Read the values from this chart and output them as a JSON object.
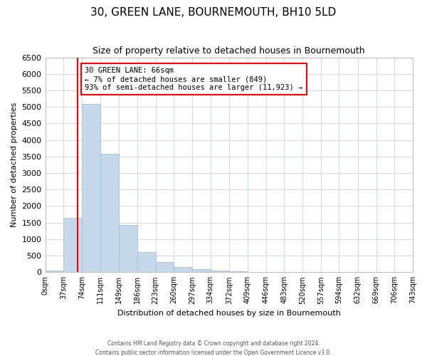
{
  "title": "30, GREEN LANE, BOURNEMOUTH, BH10 5LD",
  "subtitle": "Size of property relative to detached houses in Bournemouth",
  "xlabel": "Distribution of detached houses by size in Bournemouth",
  "ylabel": "Number of detached properties",
  "bin_edges": [
    0,
    37,
    74,
    111,
    149,
    186,
    223,
    260,
    297,
    334,
    372,
    409,
    446,
    483,
    520,
    557,
    594,
    632,
    669,
    706,
    743
  ],
  "bin_counts": [
    60,
    1640,
    5080,
    3580,
    1420,
    620,
    310,
    150,
    100,
    50,
    30,
    0,
    0,
    0,
    0,
    0,
    0,
    0,
    0,
    0
  ],
  "bar_color": "#c5d9ea",
  "bar_edgecolor": "#a0c0d8",
  "property_line_x": 66,
  "annotation_text_line1": "30 GREEN LANE: 66sqm",
  "annotation_text_line2": "← 7% of detached houses are smaller (849)",
  "annotation_text_line3": "93% of semi-detached houses are larger (11,923) →",
  "ylim": [
    0,
    6500
  ],
  "yticks": [
    0,
    500,
    1000,
    1500,
    2000,
    2500,
    3000,
    3500,
    4000,
    4500,
    5000,
    5500,
    6000,
    6500
  ],
  "tick_labels": [
    "0sqm",
    "37sqm",
    "74sqm",
    "111sqm",
    "149sqm",
    "186sqm",
    "223sqm",
    "260sqm",
    "297sqm",
    "334sqm",
    "372sqm",
    "409sqm",
    "446sqm",
    "483sqm",
    "520sqm",
    "557sqm",
    "594sqm",
    "632sqm",
    "669sqm",
    "706sqm",
    "743sqm"
  ],
  "footnote1": "Contains HM Land Registry data © Crown copyright and database right 2024.",
  "footnote2": "Contains public sector information licensed under the Open Government Licence v3.0.",
  "background_color": "#ffffff",
  "grid_color": "#d0d8e4",
  "title_fontsize": 11,
  "subtitle_fontsize": 9,
  "ylabel_fontsize": 8,
  "xlabel_fontsize": 8,
  "ytick_fontsize": 8,
  "xtick_fontsize": 7
}
